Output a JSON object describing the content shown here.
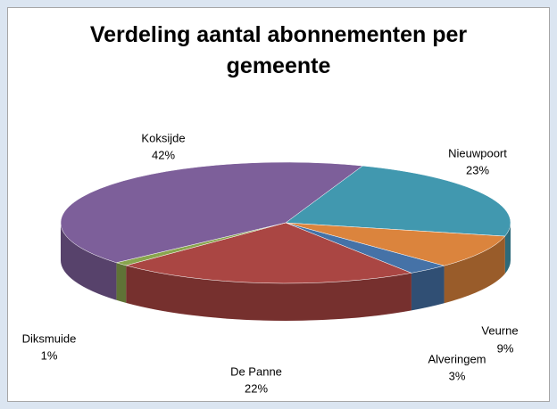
{
  "chart_data": {
    "type": "pie3d",
    "title": "Verdeling aantal abonnementen per gemeente",
    "categories": [
      "Nieuwpoort",
      "Veurne",
      "Alveringem",
      "De Panne",
      "Diksmuide",
      "Koksijde"
    ],
    "values": [
      23,
      9,
      3,
      22,
      1,
      42
    ],
    "value_labels": [
      "23%",
      "9%",
      "3%",
      "22%",
      "1%",
      "42%"
    ],
    "colors": [
      "#4198af",
      "#db843d",
      "#4572a7",
      "#aa4643",
      "#89a54e",
      "#7d5f9a"
    ]
  }
}
